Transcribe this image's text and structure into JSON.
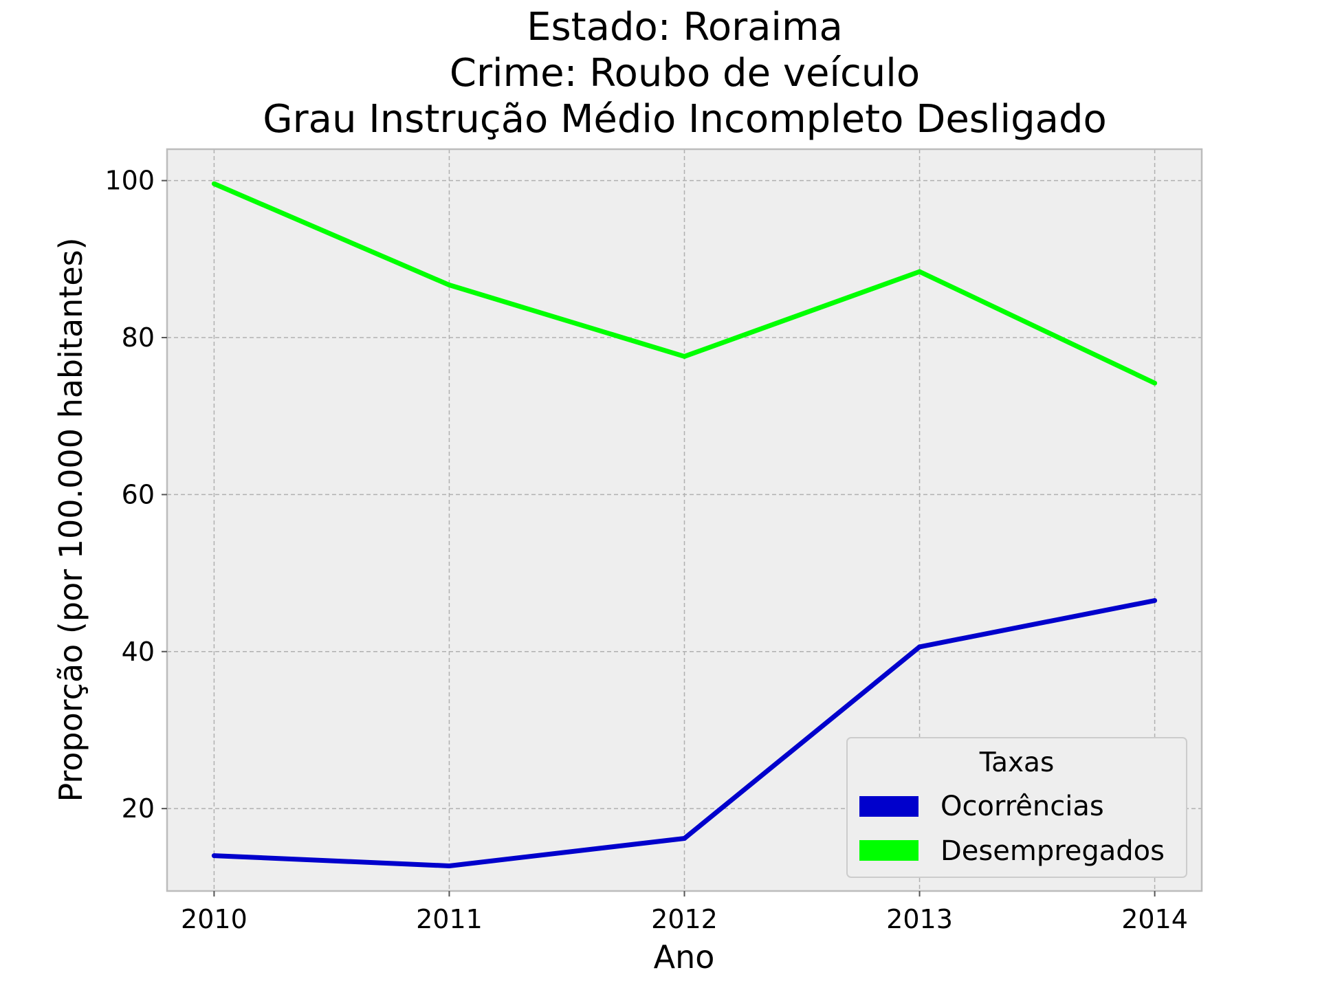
{
  "chart_data": {
    "type": "line",
    "title_lines": [
      "Estado: Roraima",
      "Crime: Roubo de veículo",
      "Grau Instrução  Médio Incompleto   Desligado"
    ],
    "xlabel": "Ano",
    "ylabel": "Proporção (por 100.000 habitantes)",
    "x": [
      2010,
      2011,
      2012,
      2013,
      2014
    ],
    "x_tick_labels": [
      "2010",
      "2011",
      "2012",
      "2013",
      "2014"
    ],
    "xlim": [
      2009.8,
      2014.2
    ],
    "y_ticks": [
      20,
      40,
      60,
      80,
      100
    ],
    "y_tick_labels": [
      "20",
      "40",
      "60",
      "80",
      "100"
    ],
    "ylim": [
      9.5,
      104
    ],
    "grid": true,
    "legend": {
      "title": "Taxas",
      "placement": "lower-right"
    },
    "series": [
      {
        "name": "Ocorrências",
        "color": "#0000cc",
        "values": [
          14.0,
          12.7,
          16.2,
          40.6,
          46.5
        ]
      },
      {
        "name": "Desempregados",
        "color": "#00ff00",
        "values": [
          99.6,
          86.7,
          77.6,
          88.4,
          74.2
        ]
      }
    ]
  }
}
